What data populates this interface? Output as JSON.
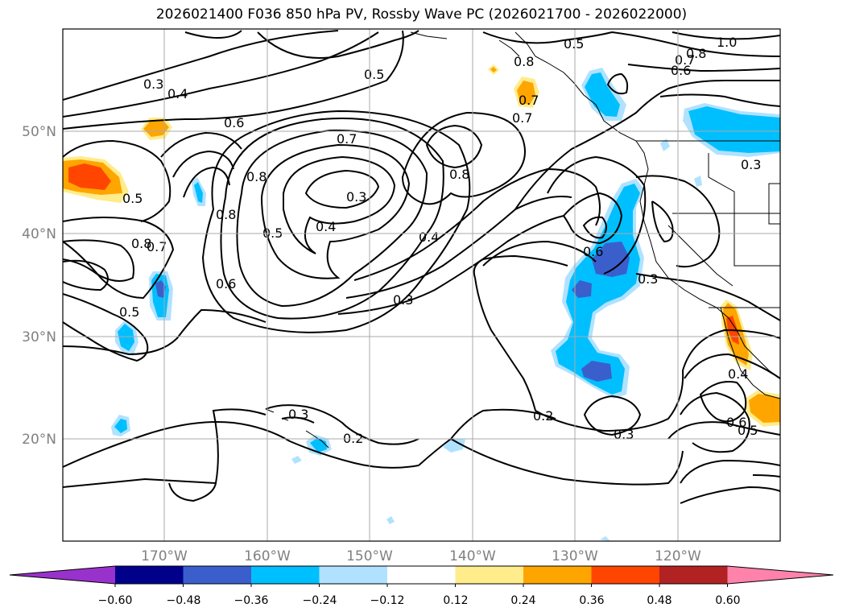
{
  "title": "2026021400 F036 850 hPa PV, Rossby Wave PC (2026021700 - 2026022000)",
  "latitude_labels": [
    "50°N",
    "40°N",
    "30°N",
    "20°N"
  ],
  "longitude_labels": [
    "170°W",
    "160°W",
    "150°W",
    "140°W",
    "130°W",
    "120°W"
  ],
  "contour_labels": [
    "0.3",
    "0.4",
    "0.6",
    "0.5",
    "0.7",
    "0.8",
    "0.3",
    "0.4",
    "0.5",
    "0.8",
    "0.5",
    "0.8",
    "0.7",
    "0.6",
    "0.5",
    "0.4",
    "0.3",
    "0.8",
    "0.7",
    "0.5",
    "1.0",
    "0.8",
    "0.7",
    "0.6",
    "0.7",
    "0.6",
    "0.3",
    "0.3",
    "0.4",
    "0.6",
    "0.5",
    "0.3",
    "0.2",
    "0.2",
    "0.3",
    "0.8"
  ],
  "colorbar": {
    "ticks": [
      "−0.60",
      "−0.48",
      "−0.36",
      "−0.24",
      "−0.12",
      "0.12",
      "0.24",
      "0.36",
      "0.48",
      "0.60"
    ],
    "colors": [
      "#9932cc",
      "#00008b",
      "#3a5fcd",
      "#00bfff",
      "#b0e2ff",
      "#ffffff",
      "#ffec8b",
      "#ffa500",
      "#ff4500",
      "#b22222",
      "#ff82ab"
    ]
  }
}
